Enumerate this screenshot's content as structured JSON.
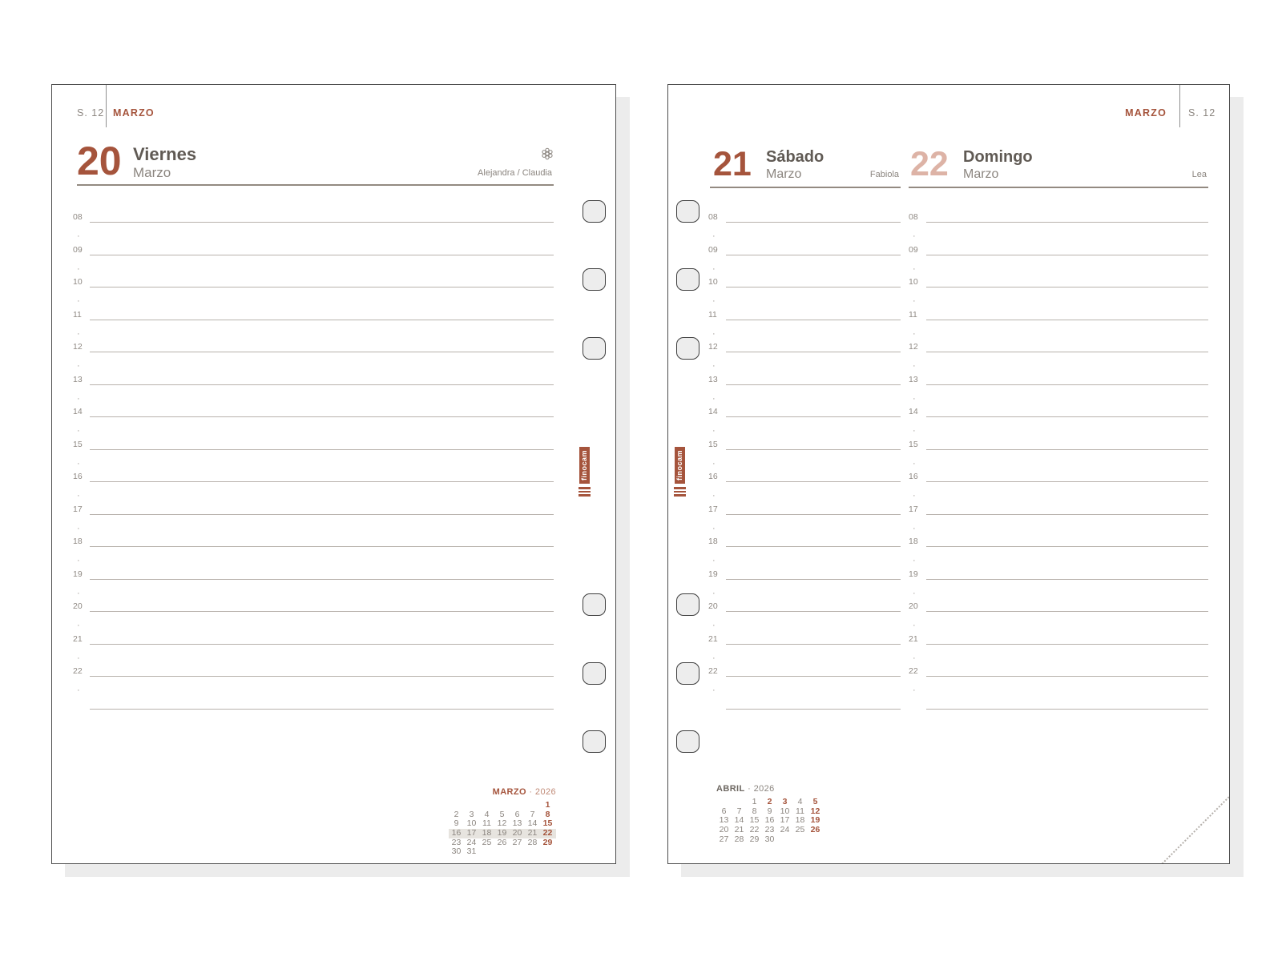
{
  "brand": {
    "logo_text": "finocam"
  },
  "left_page": {
    "week_label": "S. 12",
    "month_label": "MARZO",
    "day_number": "20",
    "day_name": "Viernes",
    "day_month": "Marzo",
    "saints": "Alejandra / Claudia"
  },
  "right_page": {
    "month_label": "MARZO",
    "week_label": "S. 12",
    "col1": {
      "day_number": "21",
      "day_name": "Sábado",
      "day_month": "Marzo",
      "saints": "Fabiola"
    },
    "col2": {
      "day_number": "22",
      "day_name": "Domingo",
      "day_month": "Marzo",
      "saints": "Lea"
    }
  },
  "schedule": {
    "hours": [
      "08",
      "09",
      "10",
      "11",
      "12",
      "13",
      "14",
      "15",
      "16",
      "17",
      "18",
      "19",
      "20",
      "21",
      "22"
    ],
    "half_hour_marker": "·"
  },
  "mini_calendars": [
    {
      "id": "marzo",
      "month": "MARZO",
      "separator": "·",
      "year": "2026",
      "weeks": [
        [
          "",
          "",
          "",
          "",
          "",
          "",
          "1"
        ],
        [
          "2",
          "3",
          "4",
          "5",
          "6",
          "7",
          "8"
        ],
        [
          "9",
          "10",
          "11",
          "12",
          "13",
          "14",
          "15"
        ],
        [
          "16",
          "17",
          "18",
          "19",
          "20",
          "21",
          "22"
        ],
        [
          "23",
          "24",
          "25",
          "26",
          "27",
          "28",
          "29"
        ],
        [
          "30",
          "31",
          "",
          "",
          "",
          "",
          ""
        ]
      ],
      "accent_days": [
        "1",
        "8",
        "15",
        "22",
        "29"
      ],
      "highlighted_week_index": 3
    },
    {
      "id": "abril",
      "month": "ABRIL",
      "separator": "·",
      "year": "2026",
      "weeks": [
        [
          "",
          "",
          "1",
          "2",
          "3",
          "4",
          "5"
        ],
        [
          "6",
          "7",
          "8",
          "9",
          "10",
          "11",
          "12"
        ],
        [
          "13",
          "14",
          "15",
          "16",
          "17",
          "18",
          "19"
        ],
        [
          "20",
          "21",
          "22",
          "23",
          "24",
          "25",
          "26"
        ],
        [
          "27",
          "28",
          "29",
          "30",
          "",
          "",
          ""
        ]
      ],
      "accent_days": [
        "2",
        "3",
        "5",
        "12",
        "19",
        "26"
      ],
      "highlighted_week_index": null
    }
  ],
  "colors": {
    "accent": "#a5543c",
    "accent_light": "#ddb3a6",
    "text_dark": "#605a54",
    "text_gray": "#8b857f",
    "line": "#b8b2ac",
    "week_highlight": "#e7e4df"
  }
}
